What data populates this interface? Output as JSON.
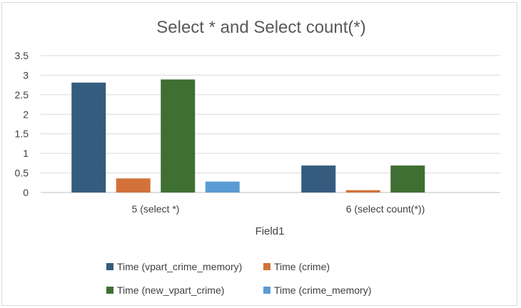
{
  "chart_data": {
    "type": "bar",
    "title": "Select * and Select count(*)",
    "xlabel": "Field1",
    "ylabel": "",
    "ylim": [
      0,
      3.5
    ],
    "yticks": [
      "0",
      "0.5",
      "1",
      "1.5",
      "2",
      "2.5",
      "3",
      "3.5"
    ],
    "categories": [
      "5 (select *)",
      "6 (select count(*))"
    ],
    "series": [
      {
        "name": "Time (vpart_crime_memory)",
        "color": "#355c7f",
        "values": [
          2.81,
          0.69
        ]
      },
      {
        "name": "Time (crime)",
        "color": "#d2723a",
        "values": [
          0.36,
          0.06
        ]
      },
      {
        "name": "Time (new_vpart_crime)",
        "color": "#3f6f32",
        "values": [
          2.89,
          0.69
        ]
      },
      {
        "name": "Time (crime_memory)",
        "color": "#5b9bd5",
        "values": [
          0.28,
          0
        ]
      }
    ],
    "grid": true,
    "legend": "bottom"
  }
}
